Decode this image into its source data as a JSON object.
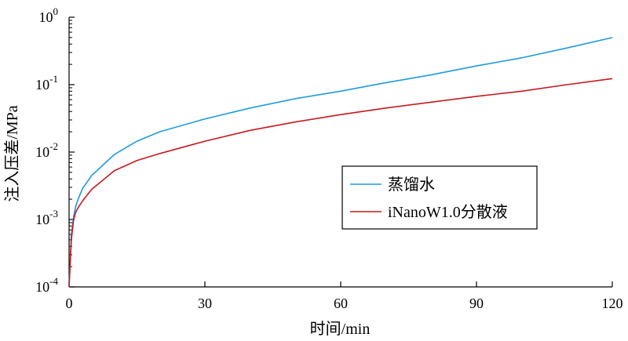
{
  "chart_data": {
    "type": "line",
    "xlabel": "时间/min",
    "ylabel": "注入压差/MPa",
    "xlim": [
      0,
      120
    ],
    "ylim": [
      0.0001,
      1
    ],
    "yscale": "log",
    "x_ticks": [
      "0",
      "30",
      "60",
      "90",
      "120"
    ],
    "y_ticks": [
      {
        "base": "10",
        "exp": "-4"
      },
      {
        "base": "10",
        "exp": "-3"
      },
      {
        "base": "10",
        "exp": "-2"
      },
      {
        "base": "10",
        "exp": "-1"
      },
      {
        "base": "10",
        "exp": "0"
      }
    ],
    "legend_position": "center-right",
    "series": [
      {
        "name": "蒸馏水",
        "color": "#1f9bde",
        "x": [
          0,
          0.2,
          0.5,
          1,
          1.5,
          2,
          3,
          5,
          10,
          15,
          20,
          30,
          40,
          50,
          60,
          70,
          80,
          90,
          100,
          110,
          120
        ],
        "y": [
          0.0001,
          0.0002,
          0.0006,
          0.0011,
          0.0016,
          0.002,
          0.0029,
          0.0045,
          0.0092,
          0.0145,
          0.02,
          0.031,
          0.045,
          0.062,
          0.08,
          0.107,
          0.14,
          0.19,
          0.25,
          0.35,
          0.5
        ]
      },
      {
        "name": "iNanoW1.0分散液",
        "color": "#c8191e",
        "x": [
          0,
          0.2,
          0.5,
          1,
          1.5,
          2,
          3,
          5,
          10,
          15,
          20,
          30,
          40,
          50,
          60,
          70,
          80,
          90,
          100,
          110,
          120
        ],
        "y": [
          0.0001,
          0.0002,
          0.0005,
          0.001,
          0.0013,
          0.0015,
          0.0019,
          0.0028,
          0.0053,
          0.0075,
          0.0095,
          0.0145,
          0.021,
          0.028,
          0.036,
          0.045,
          0.055,
          0.067,
          0.08,
          0.1,
          0.123
        ]
      }
    ]
  }
}
